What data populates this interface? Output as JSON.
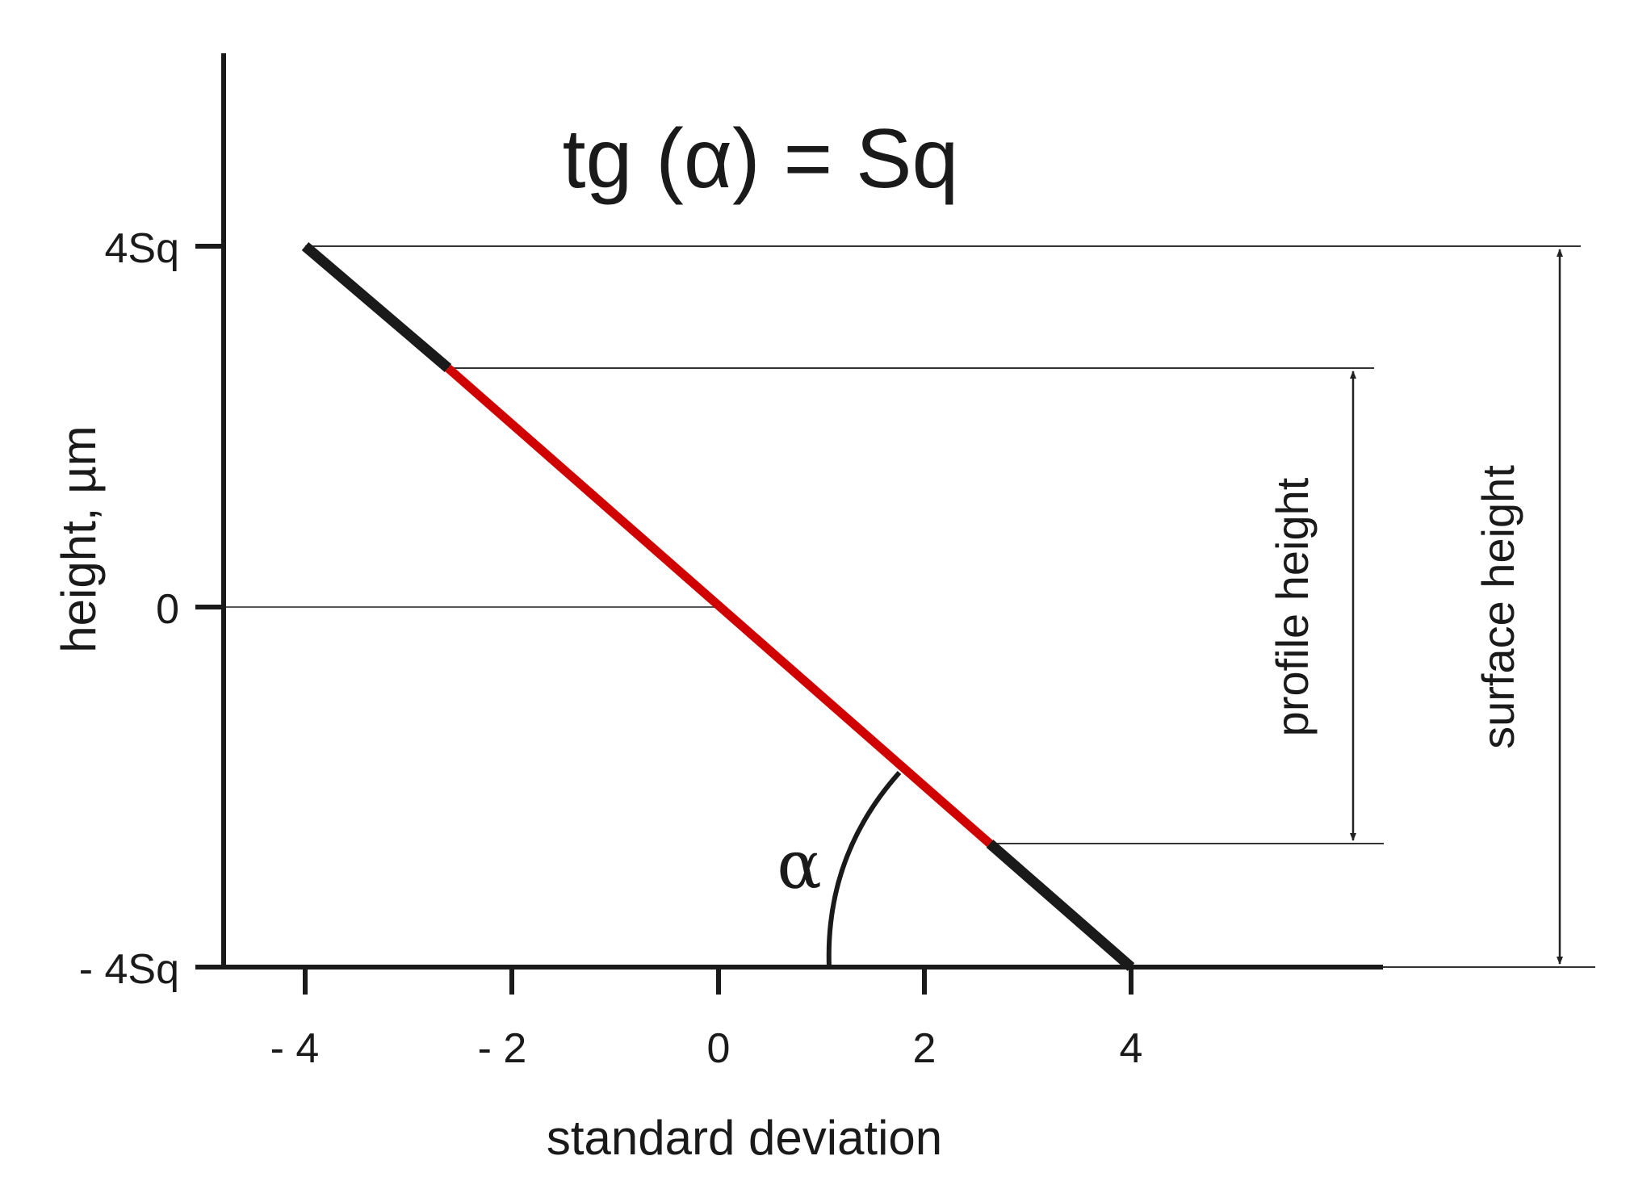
{
  "formula": "tg (α) = Sq",
  "angle_label": "α",
  "x_axis": {
    "title": "standard deviation",
    "ticks": [
      "- 4",
      "- 2",
      "0",
      "2",
      "4"
    ]
  },
  "y_axis": {
    "title": "height, µm",
    "ticks": [
      "4Sq",
      "0",
      "- 4Sq"
    ]
  },
  "dimensions": {
    "profile": "profile height",
    "surface": "surface height"
  },
  "colors": {
    "line": "#1a1a1a",
    "highlight": "#d10000",
    "thin": "#333333"
  },
  "chart_data": {
    "type": "line",
    "xlabel": "standard deviation",
    "ylabel": "height, µm",
    "xticks": [
      -4,
      -2,
      0,
      2,
      4
    ],
    "yticks": [
      "- 4Sq",
      "0",
      "4Sq"
    ],
    "series": [
      {
        "x": [
          -4,
          4
        ],
        "y": [
          4,
          -4
        ],
        "color": "#1a1a1a"
      },
      {
        "x": [
          -2.65,
          2.65
        ],
        "y": [
          2.65,
          -2.65
        ],
        "color": "#d10000"
      }
    ],
    "annotations": [
      "tg (α) = Sq",
      "α",
      "profile height",
      "surface height"
    ]
  }
}
